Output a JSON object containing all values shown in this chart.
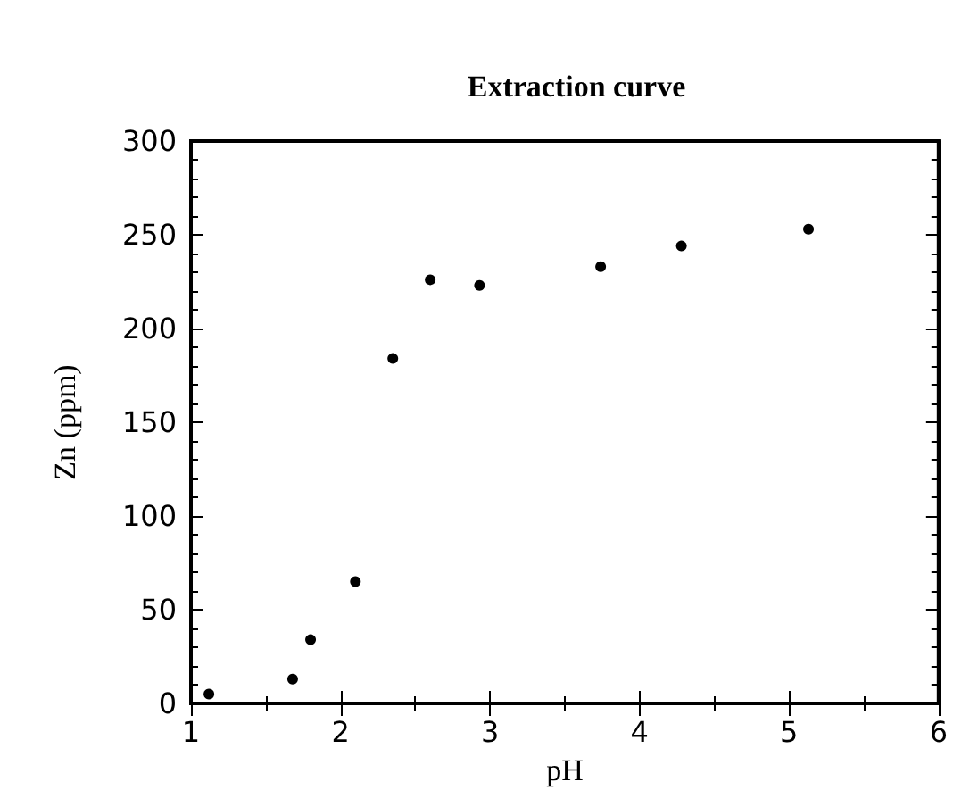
{
  "chart_data": {
    "type": "scatter",
    "title": "Extraction curve",
    "xlabel": "pH",
    "ylabel": "Zn (ppm)",
    "x": [
      1.12,
      1.68,
      1.8,
      2.1,
      2.35,
      2.6,
      2.93,
      3.74,
      4.28,
      5.13
    ],
    "series": [
      {
        "color": "#000000",
        "values": [
          5,
          13,
          34,
          65,
          184,
          226,
          223,
          233,
          244,
          253
        ]
      }
    ],
    "xlim": [
      1,
      6
    ],
    "xticks": [
      1,
      2,
      3,
      4,
      5,
      6
    ],
    "ylim": [
      0,
      300
    ],
    "yticks": [
      0,
      50,
      100,
      150,
      200,
      250,
      300
    ],
    "grid": false,
    "marker": "circle"
  }
}
